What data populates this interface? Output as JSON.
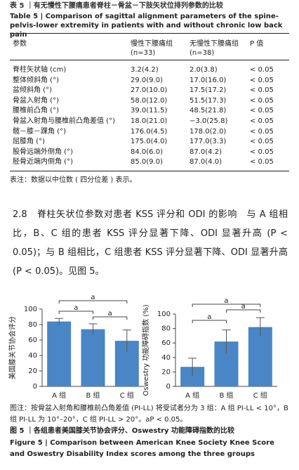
{
  "table": {
    "title_zh": "表 5 ｜有无慢性下腰痛患者脊柱－骨盆－下肢矢状位排列参数的比较",
    "title_en": "Table 5 | Comparison of sagittal alignment parameters of the spine-pelvis-lower extremity in patients with and without chronic low back pain",
    "columns": [
      "参数",
      "慢性下腰痛组",
      "无慢性下腰痛组",
      "P 值"
    ],
    "group_sizes": [
      "(n=33)",
      "(n=38)"
    ],
    "rows": [
      [
        "脊柱矢状轴 (cm)",
        "3.2(4.2)",
        "2.0(3.8)",
        "< 0.05"
      ],
      [
        "整体倾斜角 (°)",
        "29.0(9.0)",
        "17.0(16.0)",
        "< 0.05"
      ],
      [
        "盆倾斜角 (°)",
        "27.0(10.0)",
        "17.5(17.2)",
        "< 0.05"
      ],
      [
        "骨盆入射角 (°)",
        "58.0(12.0)",
        "51.5(17.3)",
        "< 0.05"
      ],
      [
        "腰椎前凸角 (°)",
        "39.0(11.5)",
        "48.5(21.8)",
        "< 0.05"
      ],
      [
        "骨盆入射角与腰椎前凸角差值 (°)",
        "18.0(21.0)",
        "−3.0(25.8)",
        "< 0.05"
      ],
      [
        "髋－膝－踝角 (°)",
        "176.0(4.5)",
        "178.0(2.0)",
        "< 0.05"
      ],
      [
        "屈膝角 (°)",
        "175.0(4.0)",
        "177.0(3.3)",
        "< 0.05"
      ],
      [
        "股骨远端外侧角 (°)",
        "84.0(6.0)",
        "87.0(4.2)",
        "< 0.05"
      ],
      [
        "胫骨近端内侧角 (°)",
        "85.0(9.0)",
        "87.0(4.0)",
        "< 0.05"
      ]
    ],
    "note": "表注：数据以中位数 ( 四分位差 ) 表示。"
  },
  "section": {
    "heading": "2.8　脊柱矢状位参数对患者 KSS 评分和 ODI 的影响",
    "text": "与 A 组相比，B、C 组的患者 KSS 评分显著下降、ODI 显著升高 (P < 0.05)；与 B 组相比，C 组患者 KSS 评分显著下降、ODI 显著升高 (P < 0.05)。见图 5。"
  },
  "chart_data": [
    {
      "type": "bar",
      "y_label": "美国膝关节协会评分",
      "categories": [
        "A 组",
        "B 组",
        "C 组"
      ],
      "values": [
        84,
        74,
        59
      ],
      "error": [
        4,
        7,
        14
      ],
      "color": "#4a86c5",
      "ylim": [
        0,
        100
      ],
      "yticks": [
        0,
        20,
        40,
        60,
        80,
        100
      ],
      "annotations": [
        "a",
        "a",
        "a"
      ]
    },
    {
      "type": "bar",
      "y_label": "Oswestry 功能障碍指数 (%)",
      "categories": [
        "A 组",
        "B 组",
        "C 组"
      ],
      "values": [
        27,
        62,
        82
      ],
      "error": [
        12,
        16,
        13
      ],
      "color": "#4a86c5",
      "ylim": [
        0,
        100
      ],
      "yticks": [
        0,
        20,
        40,
        60,
        80,
        100
      ],
      "annotations": [
        "a",
        "a",
        "a"
      ]
    }
  ],
  "figure": {
    "note": "图注：按骨盆入射角和腰椎前凸角差值 (PI-LL) 将受试者分为 3 组：A 组 PI-LL < 10°，B 组 PI-LL 为 10°–20°，C 组 PI-LL > 20°。aP < 0.05。",
    "title_zh": "图 5 ｜各组患者美国膝关节协会评分、Oswestry 功能障碍指数的比较",
    "title_en": "Figure 5 | Comparison between American Knee Society Knee Score and Oswestry Disability Index scores among the three groups"
  }
}
